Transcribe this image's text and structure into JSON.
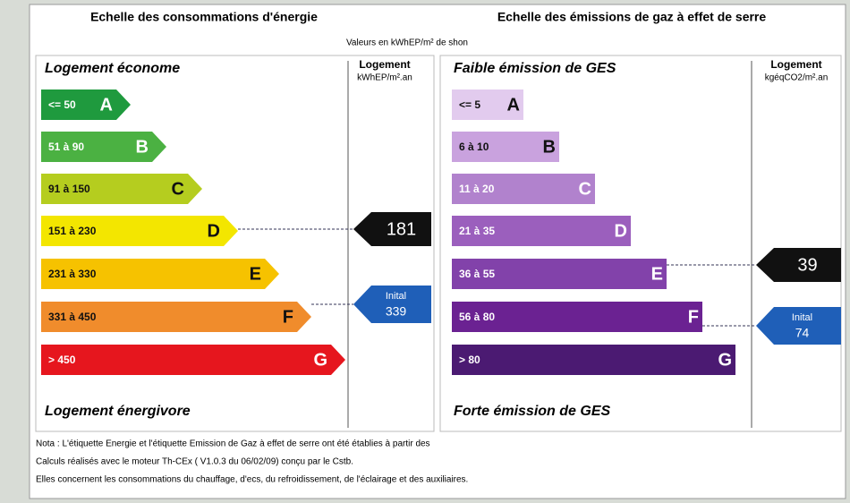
{
  "energy": {
    "title": "Echelle des consommations d'énergie",
    "unit_note": "Valeurs en kWhEP/m² de shon",
    "top_label": "Logement économe",
    "bottom_label": "Logement énergivore",
    "column_header": "Logement",
    "column_unit": "kWhEP/m².an",
    "classes": [
      {
        "range": "<= 50",
        "letter": "A",
        "color": "#1f9a3e"
      },
      {
        "range": "51 à 90",
        "letter": "B",
        "color": "#4bb142"
      },
      {
        "range": "91 à 150",
        "letter": "C",
        "color": "#b5cd1f"
      },
      {
        "range": "151 à 230",
        "letter": "D",
        "color": "#f3e600"
      },
      {
        "range": "231 à 330",
        "letter": "E",
        "color": "#f6c200"
      },
      {
        "range": "331 à 450",
        "letter": "F",
        "color": "#f08c2c"
      },
      {
        "range": "> 450",
        "letter": "G",
        "color": "#e6161e"
      }
    ],
    "current": {
      "value": 181
    },
    "initial": {
      "label": "Inital",
      "value": 339
    }
  },
  "ges": {
    "title": "Echelle des émissions de gaz à effet de serre",
    "top_label": "Faible émission de GES",
    "bottom_label": "Forte émission de GES",
    "column_header": "Logement",
    "column_unit": "kgéqCO2/m².an",
    "classes": [
      {
        "range": "<= 5",
        "letter": "A",
        "color": "#e2cbee"
      },
      {
        "range": "6 à 10",
        "letter": "B",
        "color": "#c9a2de"
      },
      {
        "range": "11 à 20",
        "letter": "C",
        "color": "#b182cd"
      },
      {
        "range": "21 à 35",
        "letter": "D",
        "color": "#9b5fbd"
      },
      {
        "range": "36 à 55",
        "letter": "E",
        "color": "#8242aa"
      },
      {
        "range": "56 à 80",
        "letter": "F",
        "color": "#6b2292"
      },
      {
        "range": "> 80",
        "letter": "G",
        "color": "#4b1a72"
      }
    ],
    "current": {
      "value": 39
    },
    "initial": {
      "label": "Inital",
      "value": 74
    }
  },
  "notes": [
    "Nota : L'étiquette Energie et l'étiquette Emission de Gaz à effet de serre ont été établies à partir des",
    "Calculs réalisés avec le moteur Th-CEx ( V1.0.3 du 06/02/09) conçu par le Cstb.",
    "Elles concernent les consommations du chauffage, d'ecs, du refroidissement, de l'éclairage et des auxiliaires."
  ]
}
